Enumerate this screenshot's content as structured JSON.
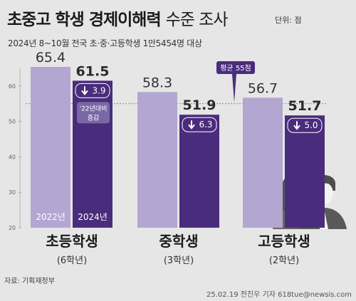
{
  "header": {
    "title_bold": "초중고 학생 경제이해력",
    "title_light": "수준 조사",
    "unit": "단위: 점",
    "subtitle": "2024년 8~10월 전국 초·중·고등학생 1만5454명 대상"
  },
  "chart_data": {
    "type": "bar",
    "title": "초중고 학생 경제이해력 수준 조사",
    "ylim": [
      20,
      65
    ],
    "yticks": [
      20,
      30,
      40,
      50,
      60
    ],
    "reference_line": {
      "value": 55,
      "label": "평균 55점"
    },
    "categories": [
      "초등학생",
      "중학생",
      "고등학생"
    ],
    "category_sub": [
      "(6학년)",
      "(3학년)",
      "(2학년)"
    ],
    "series": [
      {
        "name": "2022년",
        "values": [
          65.4,
          58.3,
          56.7
        ],
        "color": "#b3a6d1"
      },
      {
        "name": "2024년",
        "values": [
          61.5,
          51.9,
          51.7
        ],
        "color": "#4a2c7d"
      }
    ],
    "value_labels": {
      "2022": [
        "65.4",
        "58.3",
        "56.7"
      ],
      "2024": [
        "61.5",
        "51.9",
        "51.7"
      ]
    },
    "changes": [
      "3.9",
      "6.3",
      "5.0"
    ],
    "change_note": [
      "'22년대비",
      "증감"
    ],
    "bar_legend_labels": [
      "2022년",
      "2024년"
    ]
  },
  "footer": {
    "source": "자료: 기획재정부",
    "credit": "25.02.19 전진우 기자 618tue@newsis.com"
  },
  "colors": {
    "background": "#e6e6e6",
    "bar_2022": "#b3a6d1",
    "bar_2024": "#4a2c7d",
    "badge": "#4a2c7d"
  },
  "icons": [
    "student-silhouette-icon",
    "down-arrow-icon"
  ]
}
